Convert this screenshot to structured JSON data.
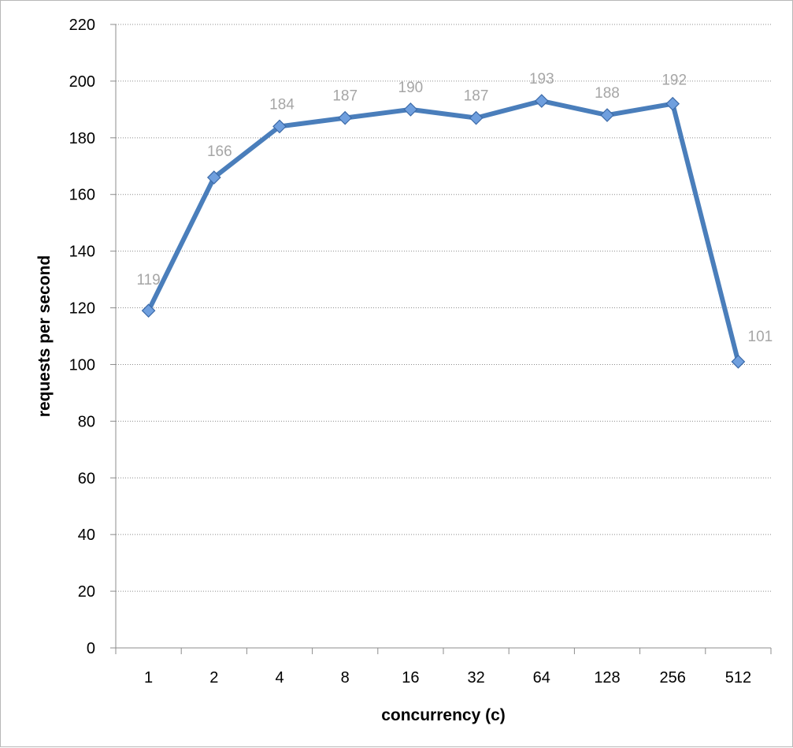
{
  "chart_data": {
    "type": "line",
    "categories": [
      "1",
      "2",
      "4",
      "8",
      "16",
      "32",
      "64",
      "128",
      "256",
      "512"
    ],
    "series": [
      {
        "values": [
          119,
          166,
          184,
          187,
          190,
          187,
          193,
          188,
          192,
          101
        ],
        "color": "#4a7ebb",
        "marker": "diamond",
        "marker_color": "#6f9fde"
      }
    ],
    "data_labels": [
      "119",
      "166",
      "184",
      "187",
      "190",
      "187",
      "193",
      "188",
      "192",
      "101"
    ],
    "xlabel": "concurrency (c)",
    "ylabel": "requests per second",
    "ylim": [
      0,
      220
    ],
    "yticks": [
      "0",
      "20",
      "40",
      "60",
      "80",
      "100",
      "120",
      "140",
      "160",
      "180",
      "200",
      "220"
    ],
    "grid": "horizontal dotted",
    "legend": "none"
  }
}
